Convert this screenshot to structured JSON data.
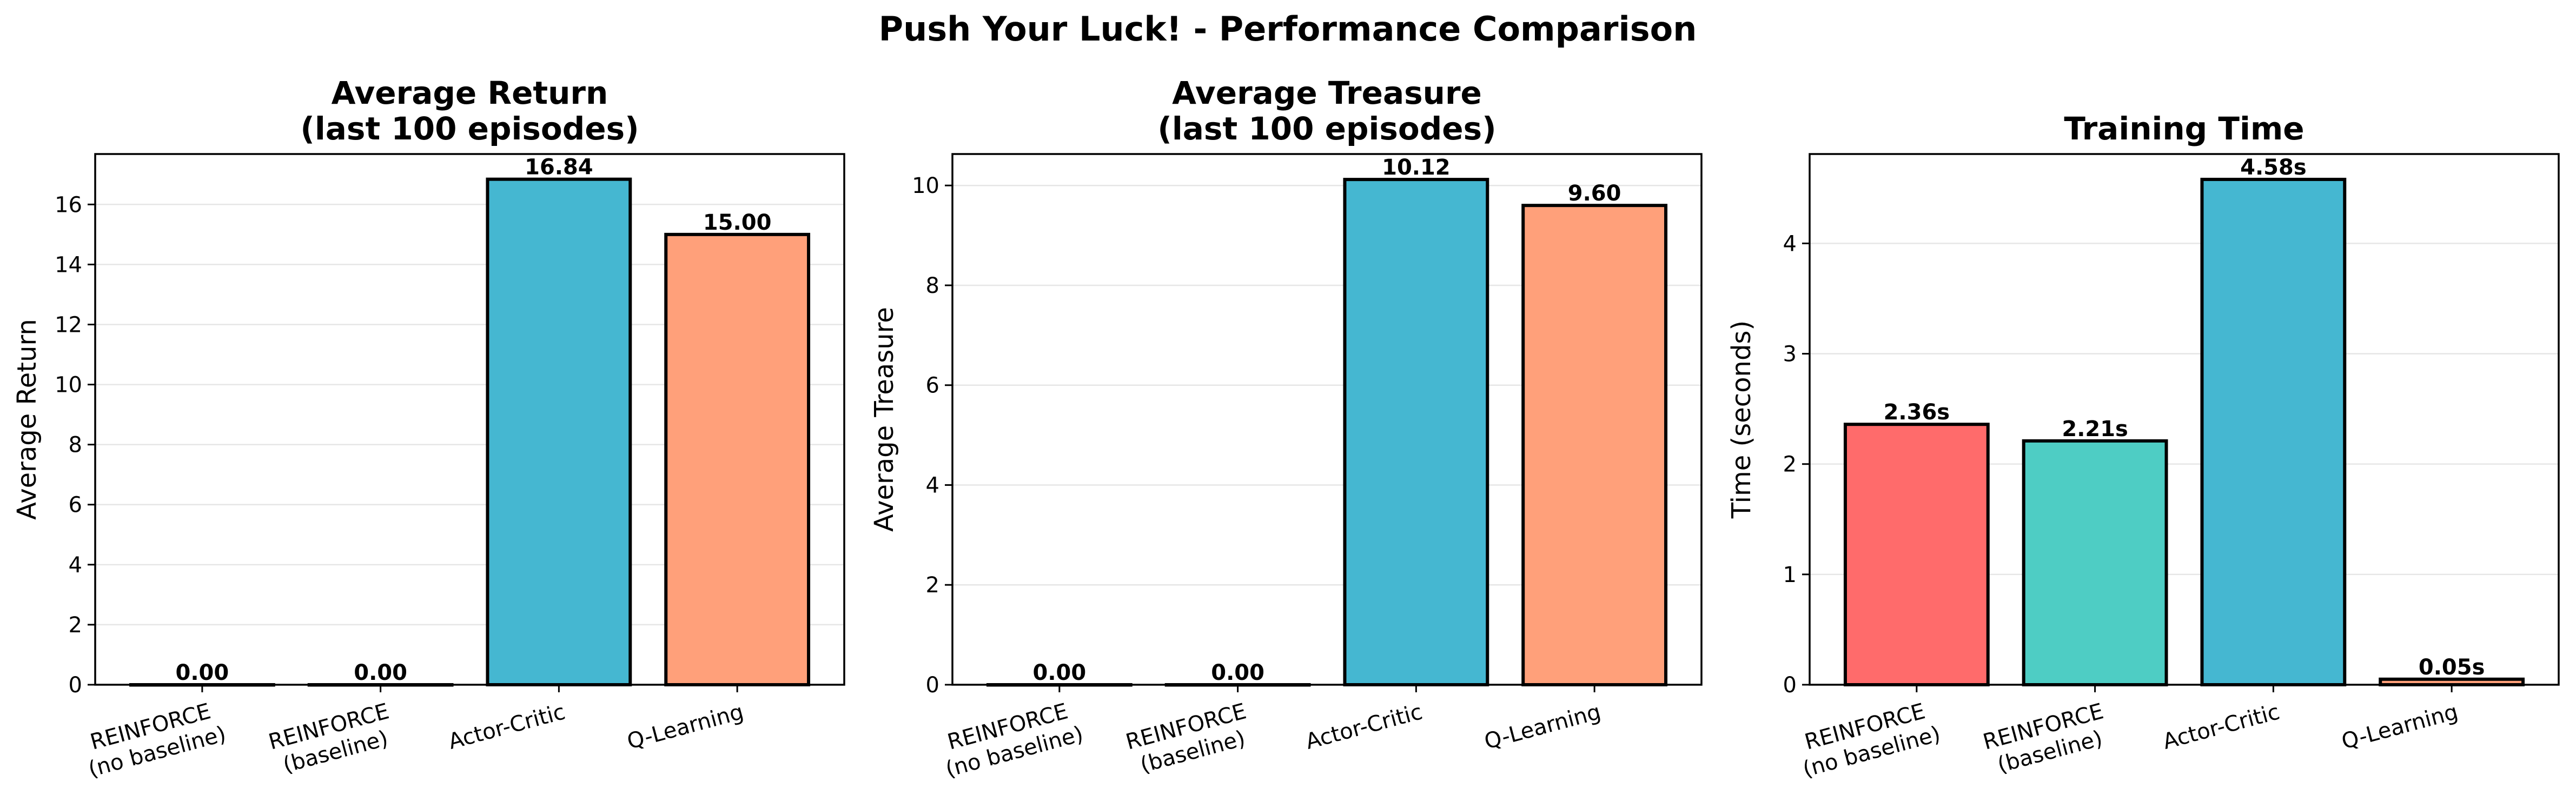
{
  "figure": {
    "title": "Push Your Luck! - Performance Comparison"
  },
  "colors": {
    "bar_colors": [
      "#FF6B6B",
      "#4ECDC4",
      "#45B7D1",
      "#FFA07A"
    ],
    "edge": "#000000",
    "grid": "#e6e6e6"
  },
  "chart_data": [
    {
      "type": "bar",
      "title": [
        "Average Return",
        "(last 100 episodes)"
      ],
      "xlabel": "",
      "ylabel": "Average Return",
      "categories": [
        [
          "REINFORCE",
          "(no baseline)"
        ],
        [
          "REINFORCE",
          "(baseline)"
        ],
        [
          "Actor-Critic"
        ],
        [
          "Q-Learning"
        ]
      ],
      "values": [
        0.0,
        0.0,
        16.84,
        15.0
      ],
      "value_labels": [
        "0.00",
        "0.00",
        "16.84",
        "15.00"
      ],
      "ylim": [
        0,
        17.68
      ],
      "yticks": [
        0,
        2,
        4,
        6,
        8,
        10,
        12,
        14,
        16
      ],
      "grid": "y"
    },
    {
      "type": "bar",
      "title": [
        "Average Treasure",
        "(last 100 episodes)"
      ],
      "xlabel": "",
      "ylabel": "Average Treasure",
      "categories": [
        [
          "REINFORCE",
          "(no baseline)"
        ],
        [
          "REINFORCE",
          "(baseline)"
        ],
        [
          "Actor-Critic"
        ],
        [
          "Q-Learning"
        ]
      ],
      "values": [
        0.0,
        0.0,
        10.12,
        9.6
      ],
      "value_labels": [
        "0.00",
        "0.00",
        "10.12",
        "9.60"
      ],
      "ylim": [
        0,
        10.63
      ],
      "yticks": [
        0,
        2,
        4,
        6,
        8,
        10
      ],
      "grid": "y"
    },
    {
      "type": "bar",
      "title": [
        "Training Time"
      ],
      "xlabel": "",
      "ylabel": "Time (seconds)",
      "categories": [
        [
          "REINFORCE",
          "(no baseline)"
        ],
        [
          "REINFORCE",
          "(baseline)"
        ],
        [
          "Actor-Critic"
        ],
        [
          "Q-Learning"
        ]
      ],
      "values": [
        2.36,
        2.21,
        4.58,
        0.05
      ],
      "value_labels": [
        "2.36s",
        "2.21s",
        "4.58s",
        "0.05s"
      ],
      "ylim": [
        0,
        4.81
      ],
      "yticks": [
        0,
        1,
        2,
        3,
        4
      ],
      "grid": "y"
    }
  ]
}
